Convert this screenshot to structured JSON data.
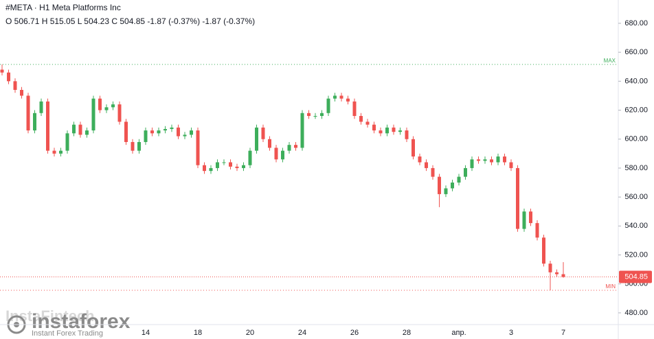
{
  "chart_data": {
    "type": "candlestick",
    "title": "#META · H1 Meta Platforms Inc",
    "subtitle": "O 506.71 H 515.05 L 504.23 C 504.85 -1.87 (-0.37%) -1.87 (-0.37%)",
    "watermark": [
      "InstaFintech",
      "instaforex",
      "Instant Forex Trading"
    ],
    "categories": [
      null,
      null,
      null,
      null,
      null,
      null,
      null,
      null,
      null,
      null,
      null,
      null,
      null,
      null,
      null,
      null,
      null,
      null,
      null,
      null,
      null,
      null,
      "14",
      null,
      null,
      null,
      null,
      null,
      null,
      null,
      "18",
      null,
      null,
      null,
      null,
      null,
      null,
      null,
      "20",
      null,
      null,
      null,
      null,
      null,
      null,
      null,
      "24",
      null,
      null,
      null,
      null,
      null,
      null,
      null,
      "26",
      null,
      null,
      null,
      null,
      null,
      null,
      null,
      "28",
      null,
      null,
      null,
      null,
      null,
      null,
      null,
      "апр.",
      null,
      null,
      null,
      null,
      null,
      null,
      null,
      "3",
      null,
      null,
      null,
      null,
      null,
      null,
      null,
      "7"
    ],
    "open": [
      648,
      646,
      640,
      634,
      630,
      606,
      618,
      626,
      592,
      590,
      592,
      604,
      610,
      603,
      606,
      628,
      620,
      622,
      624,
      612,
      598,
      592,
      598,
      606,
      604,
      606,
      607,
      608,
      602,
      603,
      606,
      582,
      578,
      580,
      584,
      584,
      581,
      580,
      582,
      592,
      608,
      600,
      594,
      586,
      592,
      596,
      594,
      618,
      616,
      616,
      618,
      628,
      630,
      628,
      626,
      616,
      612,
      610,
      606,
      604,
      608,
      605,
      606,
      600,
      588,
      584,
      580,
      574,
      562,
      566,
      570,
      574,
      580,
      586,
      585,
      586,
      584,
      588,
      584,
      580,
      538,
      550,
      542,
      532,
      514,
      508,
      506.71
    ],
    "high": [
      651.6,
      648,
      642,
      636,
      632,
      620,
      628,
      628,
      594,
      594,
      606,
      612,
      612,
      608,
      630,
      630,
      624,
      626,
      626,
      614,
      600,
      600,
      608,
      608,
      608,
      609,
      610,
      610,
      605,
      608,
      608,
      584,
      582,
      586,
      586,
      586,
      583,
      584,
      594,
      610,
      610,
      602,
      596,
      594,
      598,
      598,
      620,
      620,
      618,
      620,
      630,
      632,
      632,
      630,
      628,
      618,
      614,
      612,
      608,
      610,
      610,
      608,
      608,
      602,
      590,
      586,
      582,
      576,
      568,
      572,
      576,
      582,
      588,
      588,
      588,
      588,
      590,
      590,
      586,
      582,
      552,
      552,
      544,
      534,
      516,
      510,
      515.05
    ],
    "low": [
      644,
      638,
      632,
      628,
      604,
      604,
      616,
      590,
      588,
      588,
      590,
      602,
      601,
      601,
      604,
      618,
      618,
      620,
      610,
      596,
      590,
      590,
      596,
      602,
      602,
      604,
      605,
      600,
      600,
      601,
      580,
      576,
      576,
      578,
      582,
      579,
      578,
      578,
      580,
      590,
      598,
      592,
      584,
      584,
      590,
      592,
      592,
      614,
      614,
      614,
      616,
      626,
      626,
      624,
      614,
      610,
      608,
      604,
      602,
      602,
      603,
      603,
      598,
      586,
      582,
      578,
      572,
      553,
      560,
      564,
      568,
      572,
      578,
      583,
      583,
      582,
      582,
      582,
      578,
      536,
      536,
      540,
      530,
      512,
      495.6,
      505,
      504.23
    ],
    "close": [
      646,
      640,
      634,
      630,
      606,
      618,
      626,
      592,
      590,
      592,
      604,
      610,
      603,
      606,
      628,
      620,
      622,
      624,
      612,
      598,
      592,
      598,
      606,
      604,
      606,
      607,
      608,
      602,
      603,
      606,
      582,
      578,
      580,
      584,
      584,
      581,
      580,
      582,
      592,
      608,
      600,
      594,
      586,
      592,
      596,
      594,
      618,
      616,
      616,
      618,
      628,
      630,
      628,
      626,
      616,
      612,
      610,
      606,
      604,
      608,
      605,
      606,
      600,
      588,
      584,
      580,
      574,
      562,
      566,
      570,
      574,
      580,
      586,
      585,
      586,
      584,
      588,
      584,
      580,
      538,
      550,
      542,
      532,
      514,
      508,
      506.71,
      504.85
    ],
    "up_color": "#3dae5b",
    "down_color": "#ef5350",
    "ylim": [
      471.9,
      696.1
    ],
    "yticks": [
      {
        "value": 480,
        "label": "480.00"
      },
      {
        "value": 500,
        "label": "500.00"
      },
      {
        "value": 520,
        "label": "520.00"
      },
      {
        "value": 540,
        "label": "540.00"
      },
      {
        "value": 560,
        "label": "560.00"
      },
      {
        "value": 580,
        "label": "580.00"
      },
      {
        "value": 600,
        "label": "600.00"
      },
      {
        "value": 620,
        "label": "620.00"
      },
      {
        "value": 640,
        "label": "640.00"
      },
      {
        "value": 660,
        "label": "660.00"
      },
      {
        "value": 680,
        "label": "680.00"
      }
    ],
    "annotations": [
      {
        "label": "MAX",
        "value": 651.6,
        "color": "#3dae5b"
      },
      {
        "label": "MIN",
        "value": 495.6,
        "color": "#ef5350"
      }
    ],
    "last_price_color": "#ef5350",
    "grid": false
  }
}
